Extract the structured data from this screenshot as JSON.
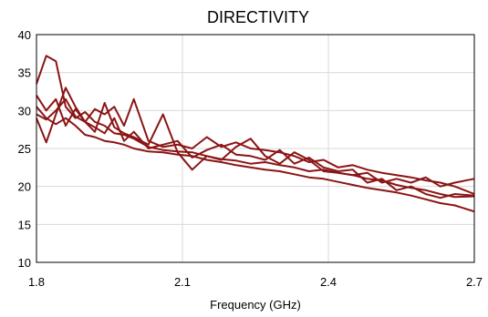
{
  "chart_data": {
    "type": "line",
    "title": "DIRECTIVITY",
    "xlabel": "Frequency (GHz)",
    "ylabel": "",
    "xlim": [
      1.8,
      2.7
    ],
    "ylim": [
      10,
      40
    ],
    "xticks": [
      "1.8",
      "2.1",
      "2.4",
      "2.7"
    ],
    "xtick_values": [
      1.8,
      2.1,
      2.4,
      2.7
    ],
    "yticks": [
      "10",
      "15",
      "20",
      "25",
      "30",
      "35",
      "40"
    ],
    "ytick_values": [
      10,
      15,
      20,
      25,
      30,
      35,
      40
    ],
    "grid": true,
    "legend": "none",
    "colors": {
      "series": "#8b1414",
      "grid": "#d9d9d9",
      "frame": "#000000"
    },
    "series": [
      {
        "x": [
          1.8,
          1.82,
          1.84,
          1.86,
          1.88,
          1.9,
          1.92,
          1.94,
          1.96,
          1.98,
          2.0,
          2.03,
          2.06,
          2.09,
          2.12,
          2.15,
          2.18,
          2.21,
          2.24,
          2.27,
          2.3,
          2.33,
          2.36,
          2.39,
          2.42,
          2.45,
          2.48,
          2.51,
          2.54,
          2.57,
          2.6,
          2.63,
          2.66,
          2.7
        ],
        "y": [
          33.5,
          37.2,
          36.5,
          30.5,
          29.0,
          29.8,
          28.5,
          28.0,
          27.0,
          26.8,
          26.3,
          25.2,
          24.8,
          24.6,
          24.5,
          24.0,
          23.6,
          23.4,
          23.0,
          23.2,
          22.8,
          22.5,
          22.0,
          22.2,
          21.8,
          21.5,
          21.0,
          20.8,
          20.2,
          19.8,
          19.5,
          19.0,
          18.6,
          18.7
        ]
      },
      {
        "x": [
          1.8,
          1.82,
          1.84,
          1.86,
          1.88,
          1.9,
          1.92,
          1.94,
          1.96,
          1.98,
          2.0,
          2.03,
          2.06,
          2.09,
          2.12,
          2.15,
          2.18,
          2.21,
          2.24,
          2.27,
          2.3,
          2.33,
          2.36,
          2.39,
          2.42,
          2.45,
          2.48,
          2.51,
          2.54,
          2.57,
          2.6,
          2.63,
          2.66,
          2.7
        ],
        "y": [
          29.0,
          25.8,
          29.5,
          33.0,
          30.5,
          28.5,
          30.2,
          29.5,
          30.5,
          28.0,
          31.5,
          26.0,
          25.2,
          25.5,
          25.0,
          26.5,
          25.2,
          25.8,
          25.0,
          24.8,
          24.5,
          24.0,
          23.2,
          23.5,
          22.5,
          22.8,
          22.2,
          21.8,
          21.5,
          21.2,
          20.8,
          20.5,
          20.0,
          19.0
        ]
      },
      {
        "x": [
          1.8,
          1.82,
          1.84,
          1.86,
          1.88,
          1.9,
          1.92,
          1.94,
          1.96,
          1.98,
          2.0,
          2.03,
          2.06,
          2.09,
          2.12,
          2.15,
          2.18,
          2.21,
          2.24,
          2.27,
          2.3,
          2.33,
          2.36,
          2.39,
          2.42,
          2.45,
          2.48,
          2.51,
          2.54,
          2.57,
          2.6,
          2.63,
          2.66,
          2.7
        ],
        "y": [
          30.5,
          29.0,
          28.2,
          29.0,
          28.0,
          26.8,
          26.5,
          26.0,
          25.8,
          25.5,
          25.0,
          24.6,
          24.5,
          24.2,
          24.0,
          23.5,
          23.2,
          22.8,
          22.5,
          22.2,
          22.0,
          21.6,
          21.2,
          21.0,
          20.6,
          20.2,
          19.8,
          19.5,
          19.2,
          18.8,
          18.3,
          17.8,
          17.5,
          16.7
        ]
      },
      {
        "x": [
          1.8,
          1.82,
          1.84,
          1.86,
          1.88,
          1.9,
          1.92,
          1.94,
          1.96,
          1.98,
          2.0,
          2.03,
          2.06,
          2.09,
          2.12,
          2.15,
          2.18,
          2.21,
          2.24,
          2.27,
          2.3,
          2.33,
          2.36,
          2.39,
          2.42,
          2.45,
          2.48,
          2.51,
          2.54,
          2.57,
          2.6,
          2.63,
          2.66,
          2.7
        ],
        "y": [
          32.0,
          30.0,
          31.5,
          28.0,
          30.2,
          28.5,
          27.2,
          31.0,
          27.8,
          27.0,
          26.5,
          25.5,
          29.5,
          24.5,
          22.2,
          24.0,
          23.5,
          25.2,
          26.3,
          24.0,
          23.0,
          24.5,
          23.5,
          22.0,
          21.8,
          21.5,
          21.8,
          20.5,
          21.0,
          20.5,
          21.2,
          20.0,
          20.5,
          21.0
        ]
      },
      {
        "x": [
          1.8,
          1.82,
          1.84,
          1.86,
          1.88,
          1.9,
          1.92,
          1.94,
          1.96,
          1.98,
          2.0,
          2.03,
          2.06,
          2.09,
          2.12,
          2.15,
          2.18,
          2.21,
          2.24,
          2.27,
          2.3,
          2.33,
          2.36,
          2.39,
          2.42,
          2.45,
          2.48,
          2.51,
          2.54,
          2.57,
          2.6,
          2.63,
          2.66,
          2.7
        ],
        "y": [
          29.5,
          28.8,
          30.0,
          31.5,
          29.2,
          28.5,
          27.8,
          27.0,
          29.0,
          26.0,
          27.2,
          25.0,
          25.5,
          26.0,
          23.8,
          24.8,
          25.5,
          24.2,
          24.0,
          23.5,
          24.8,
          23.0,
          23.8,
          22.5,
          22.0,
          22.2,
          20.5,
          21.0,
          19.5,
          20.0,
          19.0,
          18.5,
          19.0,
          18.8
        ]
      }
    ]
  }
}
